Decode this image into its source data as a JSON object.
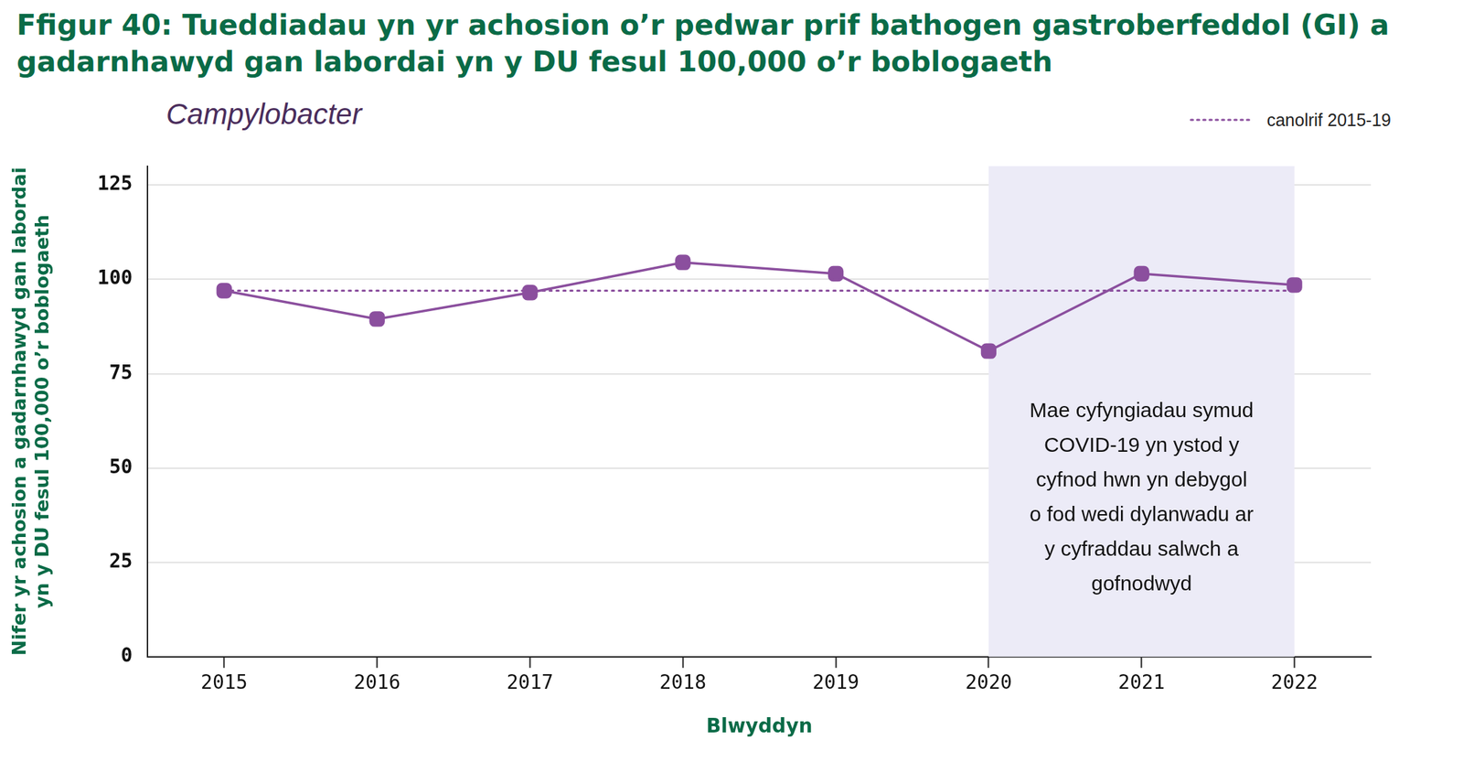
{
  "chart_data": {
    "type": "line",
    "title": "Ffigur 40: Tueddiadau yn yr achosion o’r pedwar prif bathogen gastroberfeddol (GI) a gadarnhawyd gan labordai yn y DU fesul 100,000 o’r boblogaeth",
    "subtitle": "Campylobacter",
    "x_label": "Blwyddyn",
    "y_label": [
      "Nifer yr achosion a gadarnhawyd gan labordai",
      "yn y DU fesul 100,000 o’r boblogaeth"
    ],
    "categories": [
      "2015",
      "2016",
      "2017",
      "2018",
      "2019",
      "2020",
      "2021",
      "2022"
    ],
    "series": [
      {
        "color": "#8b4f9e",
        "marker": "square",
        "line_style": "solid",
        "values": [
          97,
          89.5,
          96.5,
          104.5,
          101.5,
          81,
          101.5,
          98.5
        ]
      },
      {
        "name": "canolrif 2015-19",
        "color": "#8b4f9e",
        "marker": "none",
        "line_style": "dotted",
        "values": [
          97,
          97,
          97,
          97,
          97,
          97,
          97,
          97
        ]
      }
    ],
    "shaded_region": {
      "from": "2020",
      "to": "2022",
      "color": "#ecebf7",
      "annotation": "Mae cyfyngiadau symud COVID-19 yn ystod y cyfnod hwn yn debygol o fod wedi dylanwadu ar y cyfraddau salwch a gofnodwyd"
    },
    "ylim": [
      0,
      130
    ],
    "yticks": [
      0,
      25,
      50,
      75,
      100,
      125
    ],
    "grid": true,
    "legend": "top-right"
  }
}
